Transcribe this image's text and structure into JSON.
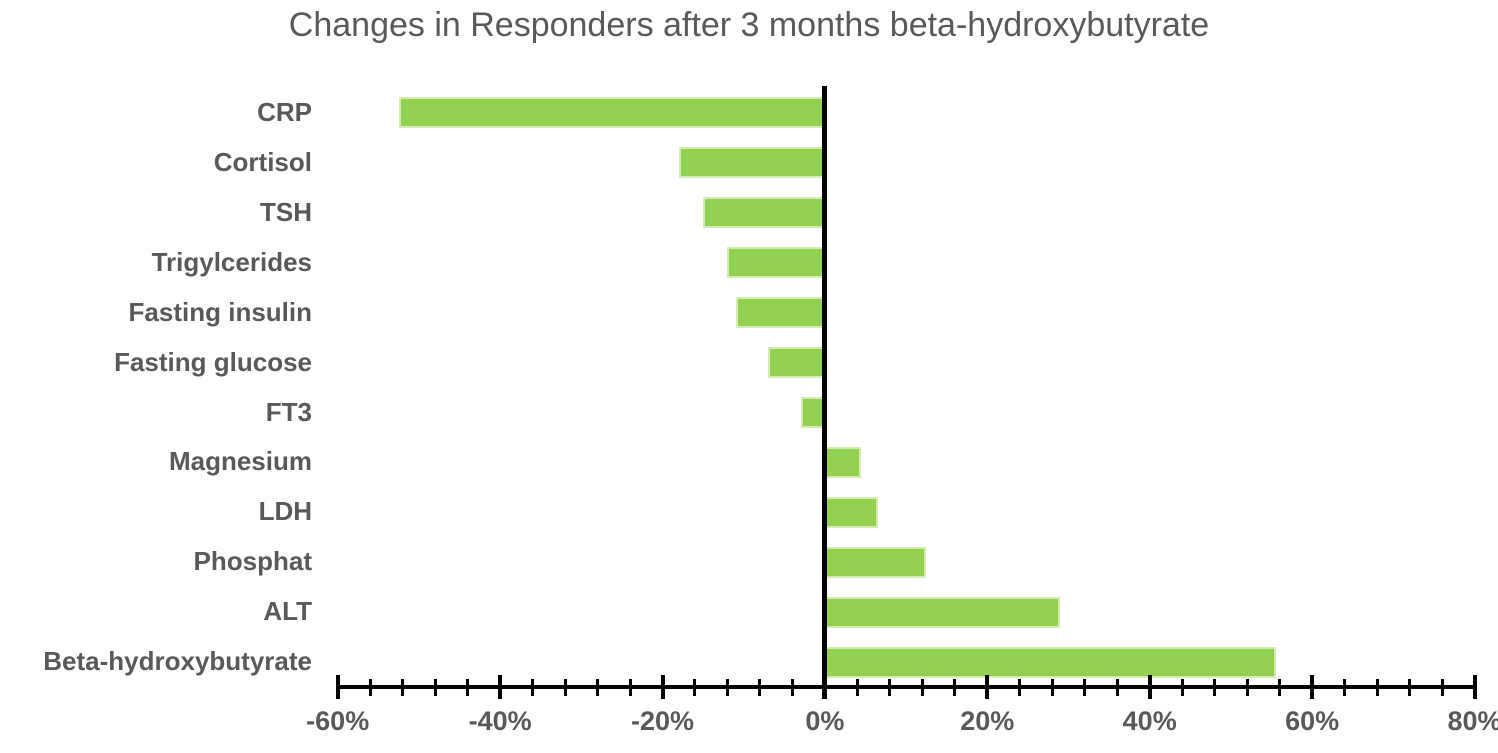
{
  "chart_data": {
    "type": "bar",
    "orientation": "horizontal",
    "title": "Changes in Responders after 3 months beta-hydroxybutyrate",
    "categories": [
      "CRP",
      "Cortisol",
      "TSH",
      "Trigylcerides",
      "Fasting insulin",
      "Fasting glucose",
      "FT3",
      "Magnesium",
      "LDH",
      "Phosphat",
      "ALT",
      "Beta-hydroxybutyrate"
    ],
    "values": [
      -52.5,
      -18,
      -15,
      -12,
      -11,
      -7,
      -3,
      4.5,
      6.5,
      12.5,
      29,
      55.5
    ],
    "unit": "%",
    "xlabel": "",
    "ylabel": "",
    "xlim": [
      -60,
      80
    ],
    "x_major_step": 20,
    "x_minor_step": 4,
    "x_tick_labels": [
      "-60%",
      "-40%",
      "-20%",
      "0%",
      "20%",
      "40%",
      "60%",
      "80%"
    ],
    "grid": false,
    "legend": false,
    "colors": {
      "bar_fill": "#92d050",
      "bar_border": "#d4ecb4",
      "axis": "#000000",
      "text": "#595959"
    }
  }
}
